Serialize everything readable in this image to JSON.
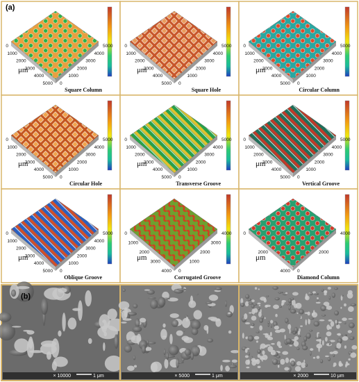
{
  "figure": {
    "panel_a": {
      "label": "(a)",
      "panels": [
        {
          "caption": "Square  Column",
          "unit": "μm",
          "ticks_left": [
            0,
            1000,
            2000,
            3000,
            4000,
            5000
          ],
          "ticks_right": [
            0,
            1000,
            2000,
            3000,
            4000,
            5000
          ]
        },
        {
          "caption": "Square Hole",
          "unit": "μm",
          "ticks_left": [
            0,
            1000,
            2000,
            3000,
            4000,
            5000
          ],
          "ticks_right": [
            0,
            1000,
            2000,
            3000,
            4000,
            5000
          ]
        },
        {
          "caption": "Circular Column",
          "unit": "μm",
          "ticks_left": [
            0,
            1000,
            2000,
            3000,
            4000,
            5000
          ],
          "ticks_right": [
            0,
            1000,
            2000,
            3000,
            4000,
            5000
          ]
        },
        {
          "caption": "Circular Hole",
          "unit": "μm",
          "ticks_left": [
            0,
            1000,
            2000,
            3000,
            4000,
            5000
          ],
          "ticks_right": [
            0,
            1000,
            2000,
            3000,
            4000,
            5000
          ]
        },
        {
          "caption": "Transverse Groove",
          "unit": "μm",
          "ticks_left": [
            0,
            1000,
            2000,
            3000,
            4000,
            5000
          ],
          "ticks_right": [
            0,
            1000,
            2000,
            3000,
            4000,
            5000
          ]
        },
        {
          "caption": "Vertical Groove",
          "unit": "μm",
          "ticks_left": [
            0,
            1000,
            2000,
            3000,
            4000,
            5000
          ],
          "ticks_right": [
            0,
            1000,
            2000,
            3000,
            4000,
            5000
          ]
        },
        {
          "caption": "Oblique Groove",
          "unit": "μm",
          "ticks_left": [
            0,
            1000,
            2000,
            3000,
            4000,
            5000
          ],
          "ticks_right": [
            0,
            1000,
            2000,
            3000,
            4000,
            5000
          ]
        },
        {
          "caption": "Corrugated Groove",
          "unit": "μm",
          "ticks_left": [
            0,
            1000,
            2000,
            3000,
            4000
          ],
          "ticks_right": [
            0,
            1000,
            2000,
            3000,
            4000
          ]
        },
        {
          "caption": "Diamond Column",
          "unit": "μm",
          "ticks_left": [
            0,
            2000,
            4000
          ],
          "ticks_right": [
            0,
            2000,
            4000
          ]
        }
      ]
    },
    "panel_b": {
      "label": "(b)",
      "images": [
        {
          "magnification": "× 10000",
          "scale": "1 μm"
        },
        {
          "magnification": "× 5000",
          "scale": "1 μm"
        },
        {
          "magnification": "× 2000",
          "scale": "10 μm"
        }
      ]
    }
  }
}
